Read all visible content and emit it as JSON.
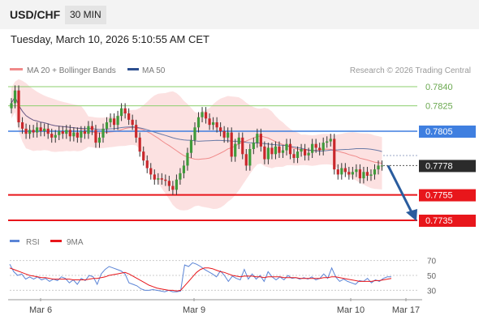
{
  "header": {
    "symbol": "USD/CHF",
    "timeframe": "30 MIN",
    "datetime": "Tuesday, March 10, 2026 5:10:55 AM CET"
  },
  "chart_data": {
    "type": "line",
    "subtype": "candlestick-with-indicators",
    "legend": [
      {
        "name": "MA 20 + Bollinger Bands",
        "color": "#f08a8a"
      },
      {
        "name": "MA 50",
        "color": "#2c4f8f"
      }
    ],
    "source": "Research © 2026 Trading Central",
    "x_ticks": [
      "Mar 6",
      "Mar 9",
      "Mar 10",
      "Mar 17"
    ],
    "y_range": [
      0.7725,
      0.785
    ],
    "levels": [
      {
        "value": 0.784,
        "label": "0.7840",
        "style": "green-line"
      },
      {
        "value": 0.7825,
        "label": "0.7825",
        "style": "green-line"
      },
      {
        "value": 0.7805,
        "label": "0.7805",
        "style": "blue-resistance"
      },
      {
        "value": 0.7778,
        "label": "0.7778",
        "style": "current-price"
      },
      {
        "value": 0.7755,
        "label": "0.7755",
        "style": "red-support"
      },
      {
        "value": 0.7735,
        "label": "0.7735",
        "style": "red-support"
      }
    ],
    "colors": {
      "support": "#e8161b",
      "resistance": "#3f7fe0",
      "target": "#8ccf6e",
      "current": "#2b2b2b",
      "arrow": "#2a5c9e",
      "bb": "#fbd9d9"
    },
    "close": [
      0.7827,
      0.7837,
      0.7812,
      0.7807,
      0.7803,
      0.7806,
      0.7804,
      0.7808,
      0.7805,
      0.7807,
      0.7803,
      0.78,
      0.7802,
      0.7805,
      0.7803,
      0.7806,
      0.7801,
      0.7804,
      0.78,
      0.7805,
      0.7803,
      0.7809,
      0.7806,
      0.7796,
      0.78,
      0.7807,
      0.7812,
      0.7815,
      0.781,
      0.7817,
      0.7823,
      0.7819,
      0.7814,
      0.781,
      0.78,
      0.7789,
      0.7782,
      0.7776,
      0.7771,
      0.7767,
      0.7768,
      0.7767,
      0.7766,
      0.7762,
      0.7759,
      0.7767,
      0.7772,
      0.7778,
      0.7788,
      0.7798,
      0.7808,
      0.7816,
      0.782,
      0.7815,
      0.781,
      0.7812,
      0.7808,
      0.7805,
      0.78,
      0.7804,
      0.7785,
      0.7795,
      0.78,
      0.7787,
      0.7778,
      0.7791,
      0.7796,
      0.7803,
      0.7793,
      0.7783,
      0.7792,
      0.7787,
      0.7793,
      0.7788,
      0.779,
      0.7795,
      0.7787,
      0.7784,
      0.7789,
      0.7791,
      0.7786,
      0.7788,
      0.7795,
      0.7792,
      0.779,
      0.7796,
      0.7797,
      0.7799,
      0.7775,
      0.7771,
      0.7776,
      0.7773,
      0.7771,
      0.7773,
      0.7775,
      0.7768,
      0.7773,
      0.777,
      0.7771,
      0.7775,
      0.7778,
      0.7778
    ],
    "rsi_panel": {
      "legend": [
        {
          "name": "RSI",
          "color": "#5b84d6"
        },
        {
          "name": "9MA",
          "color": "#e8161b"
        }
      ],
      "y_ticks": [
        "70",
        "50",
        "30"
      ],
      "rsi": [
        65,
        55,
        50,
        52,
        45,
        48,
        45,
        48,
        44,
        46,
        42,
        45,
        43,
        48,
        46,
        40,
        44,
        38,
        46,
        43,
        50,
        48,
        38,
        52,
        58,
        62,
        60,
        58,
        56,
        52,
        40,
        38,
        36,
        32,
        30,
        30,
        31,
        30,
        29,
        28,
        30,
        28,
        28,
        29,
        64,
        62,
        67,
        65,
        62,
        58,
        55,
        52,
        48,
        56,
        50,
        42,
        49,
        46,
        44,
        58,
        45,
        52,
        45,
        50,
        42,
        55,
        48,
        44,
        48,
        44,
        50,
        46,
        47,
        45,
        47,
        45,
        48,
        44,
        46,
        52,
        46,
        60,
        48,
        42,
        45,
        42,
        40,
        38,
        43,
        42,
        46,
        40,
        44,
        42,
        46,
        48,
        48
      ],
      "ma9": [
        60,
        58,
        56,
        54,
        52,
        50,
        49,
        48,
        47,
        47,
        46,
        45,
        45,
        45,
        45,
        45,
        44,
        44,
        44,
        44,
        45,
        46,
        46,
        47,
        48,
        50,
        51,
        52,
        53,
        54,
        52,
        49,
        46,
        43,
        40,
        37,
        35,
        33,
        32,
        31,
        30,
        30,
        29,
        30,
        36,
        42,
        48,
        54,
        58,
        60,
        60,
        59,
        57,
        55,
        54,
        52,
        50,
        49,
        48,
        49,
        49,
        49,
        48,
        48,
        47,
        48,
        48,
        48,
        48,
        47,
        47,
        47,
        47,
        46,
        46,
        46,
        46,
        46,
        46,
        47,
        47,
        48,
        48,
        47,
        46,
        45,
        44,
        43,
        42,
        42,
        42,
        42,
        43,
        43,
        44,
        45,
        46
      ]
    }
  }
}
